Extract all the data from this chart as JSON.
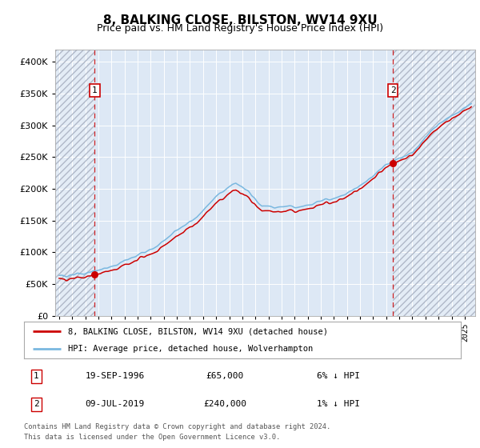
{
  "title": "8, BALKING CLOSE, BILSTON, WV14 9XU",
  "subtitle": "Price paid vs. HM Land Registry's House Price Index (HPI)",
  "sale1_date": "19-SEP-1996",
  "sale1_price": 65000,
  "sale2_date": "09-JUL-2019",
  "sale2_price": 240000,
  "sale1_pct": "6% ↓ HPI",
  "sale2_pct": "1% ↓ HPI",
  "legend_property": "8, BALKING CLOSE, BILSTON, WV14 9XU (detached house)",
  "legend_hpi": "HPI: Average price, detached house, Wolverhampton",
  "footer1": "Contains HM Land Registry data © Crown copyright and database right 2024.",
  "footer2": "This data is licensed under the Open Government Licence v3.0.",
  "hpi_color": "#7ab8e0",
  "property_color": "#cc0000",
  "vline_color": "#cc0000",
  "background_color": "#dde8f5",
  "ylim": [
    0,
    420000
  ],
  "yticks": [
    0,
    50000,
    100000,
    150000,
    200000,
    250000,
    300000,
    350000,
    400000
  ],
  "sale1_year": 1996.72,
  "sale2_year": 2019.52,
  "xmin": 1993.7,
  "xmax": 2025.8
}
